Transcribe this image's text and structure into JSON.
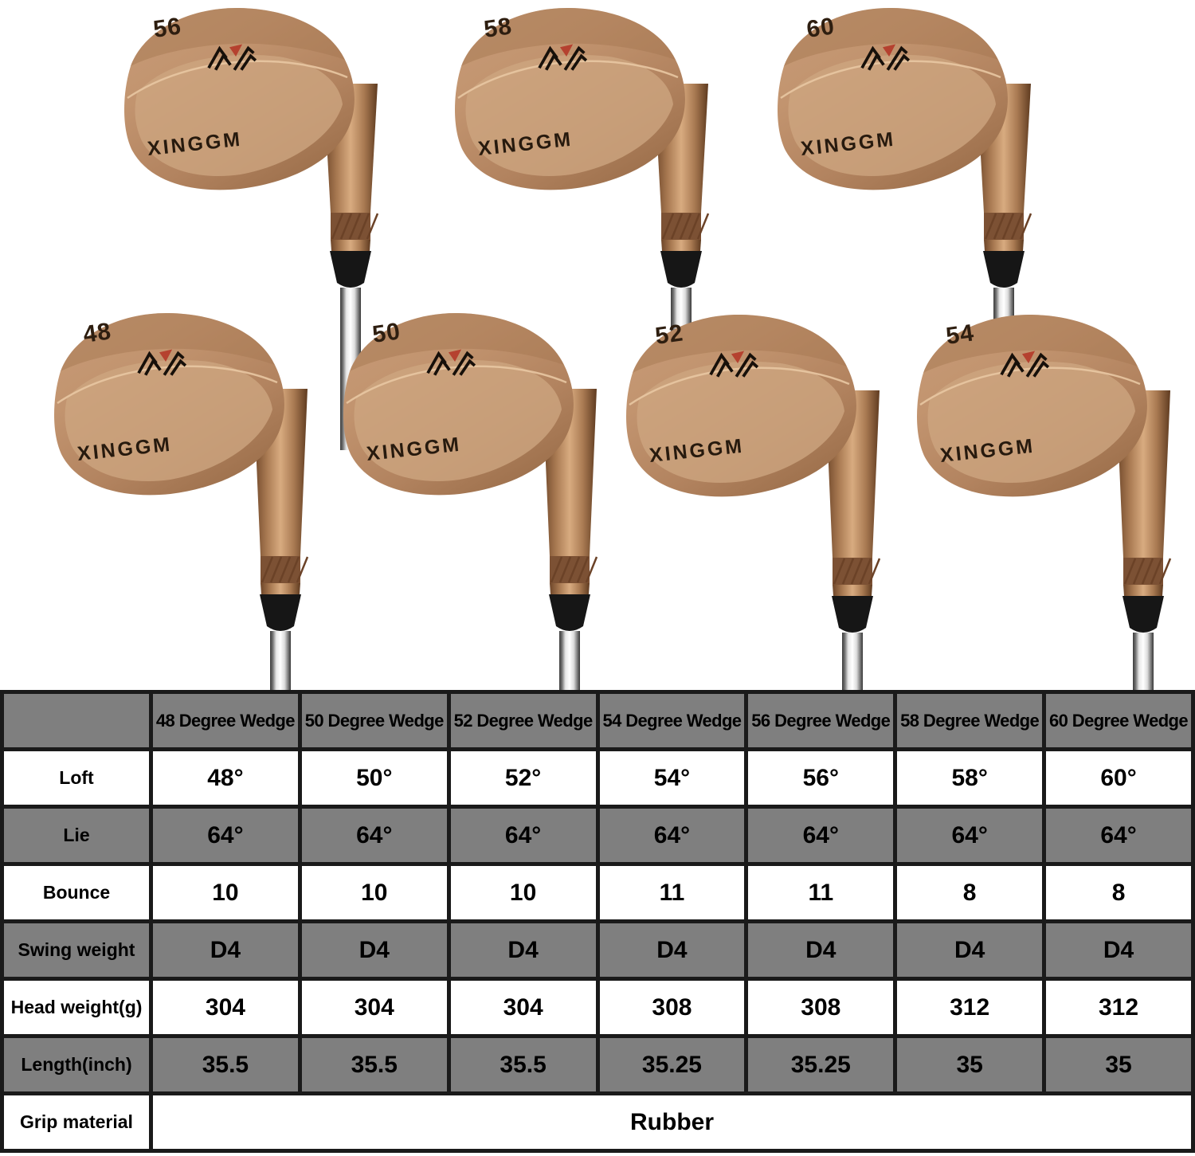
{
  "product_photo": {
    "brand": "XINGGM",
    "logo": {
      "icon": "m-chevron-logo",
      "stroke_color": "#17100a",
      "accent_color": "#b5412f"
    },
    "wedges": [
      {
        "loft_label": "56"
      },
      {
        "loft_label": "58"
      },
      {
        "loft_label": "60"
      },
      {
        "loft_label": "48"
      },
      {
        "loft_label": "50"
      },
      {
        "loft_label": "52"
      },
      {
        "loft_label": "54"
      }
    ]
  },
  "colors": {
    "table_header_gray": "#7f7f7f",
    "table_border": "#1a1a1a",
    "head_copper": "#c2946f",
    "shaft_chrome": "#f2f2f2",
    "ferrule_black": "#161616"
  },
  "table": {
    "corner_label": "",
    "columns": [
      "48 Degree Wedge",
      "50 Degree Wedge",
      "52 Degree Wedge",
      "54 Degree Wedge",
      "56 Degree Wedge",
      "58 Degree Wedge",
      "60 Degree Wedge"
    ],
    "rows": [
      {
        "label": "Loft",
        "values": [
          "48°",
          "50°",
          "52°",
          "54°",
          "56°",
          "58°",
          "60°"
        ]
      },
      {
        "label": "Lie",
        "values": [
          "64°",
          "64°",
          "64°",
          "64°",
          "64°",
          "64°",
          "64°"
        ]
      },
      {
        "label": "Bounce",
        "values": [
          "10",
          "10",
          "10",
          "11",
          "11",
          "8",
          "8"
        ]
      },
      {
        "label": "Swing weight",
        "values": [
          "D4",
          "D4",
          "D4",
          "D4",
          "D4",
          "D4",
          "D4"
        ]
      },
      {
        "label": "Head weight(g)",
        "values": [
          "304",
          "304",
          "304",
          "308",
          "308",
          "312",
          "312"
        ]
      },
      {
        "label": "Length(inch)",
        "values": [
          "35.5",
          "35.5",
          "35.5",
          "35.25",
          "35.25",
          "35",
          "35"
        ]
      },
      {
        "label": "Grip material",
        "values": [
          "Rubber"
        ],
        "span_all": true
      }
    ]
  }
}
